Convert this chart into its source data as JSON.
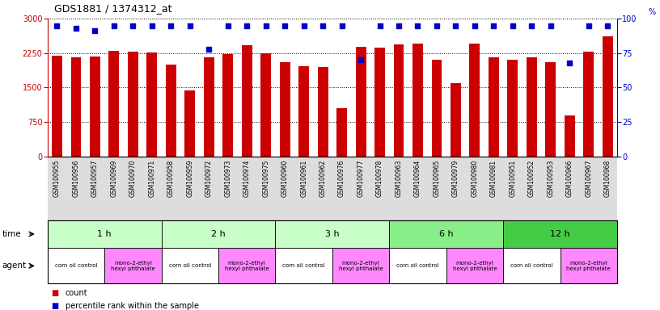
{
  "title": "GDS1881 / 1374312_at",
  "samples": [
    "GSM100955",
    "GSM100956",
    "GSM100957",
    "GSM100969",
    "GSM100970",
    "GSM100971",
    "GSM100958",
    "GSM100959",
    "GSM100972",
    "GSM100973",
    "GSM100974",
    "GSM100975",
    "GSM100960",
    "GSM100961",
    "GSM100962",
    "GSM100976",
    "GSM100977",
    "GSM100978",
    "GSM100963",
    "GSM100964",
    "GSM100965",
    "GSM100979",
    "GSM100980",
    "GSM100981",
    "GSM100951",
    "GSM100952",
    "GSM100953",
    "GSM100966",
    "GSM100967",
    "GSM100968"
  ],
  "counts": [
    2200,
    2150,
    2170,
    2290,
    2280,
    2270,
    2000,
    1430,
    2150,
    2220,
    2430,
    2250,
    2050,
    1970,
    1940,
    1050,
    2390,
    2370,
    2440,
    2450,
    2100,
    1600,
    2450,
    2150,
    2100,
    2150,
    2050,
    900,
    2280,
    2620
  ],
  "percentiles": [
    95,
    93,
    91,
    95,
    95,
    95,
    95,
    95,
    78,
    95,
    95,
    95,
    95,
    95,
    95,
    95,
    70,
    95,
    95,
    95,
    95,
    95,
    95,
    95,
    95,
    95,
    95,
    68,
    95,
    95
  ],
  "bar_color": "#cc0000",
  "dot_color": "#0000cc",
  "ylim_left": [
    0,
    3000
  ],
  "ylim_right": [
    0,
    100
  ],
  "yticks_left": [
    0,
    750,
    1500,
    2250,
    3000
  ],
  "yticks_right": [
    0,
    25,
    50,
    75,
    100
  ],
  "time_groups": [
    {
      "label": "1 h",
      "start": 0,
      "end": 6,
      "color": "#c8ffc8"
    },
    {
      "label": "2 h",
      "start": 6,
      "end": 12,
      "color": "#c8ffc8"
    },
    {
      "label": "3 h",
      "start": 12,
      "end": 18,
      "color": "#c8ffc8"
    },
    {
      "label": "6 h",
      "start": 18,
      "end": 24,
      "color": "#88ee88"
    },
    {
      "label": "12 h",
      "start": 24,
      "end": 30,
      "color": "#44cc44"
    }
  ],
  "agent_groups": [
    {
      "label": "corn oil control",
      "start": 0,
      "end": 3,
      "color": "#ffffff"
    },
    {
      "label": "mono-2-ethyl\nhexyl phthalate",
      "start": 3,
      "end": 6,
      "color": "#ff88ff"
    },
    {
      "label": "corn oil control",
      "start": 6,
      "end": 9,
      "color": "#ffffff"
    },
    {
      "label": "mono-2-ethyl\nhexyl phthalate",
      "start": 9,
      "end": 12,
      "color": "#ff88ff"
    },
    {
      "label": "corn oil control",
      "start": 12,
      "end": 15,
      "color": "#ffffff"
    },
    {
      "label": "mono-2-ethyl\nhexyl phthalate",
      "start": 15,
      "end": 18,
      "color": "#ff88ff"
    },
    {
      "label": "corn oil control",
      "start": 18,
      "end": 21,
      "color": "#ffffff"
    },
    {
      "label": "mono-2-ethyl\nhexyl phthalate",
      "start": 21,
      "end": 24,
      "color": "#ff88ff"
    },
    {
      "label": "corn oil control",
      "start": 24,
      "end": 27,
      "color": "#ffffff"
    },
    {
      "label": "mono-2-ethyl\nhexyl phthalate",
      "start": 27,
      "end": 30,
      "color": "#ff88ff"
    }
  ],
  "xtick_bg": "#dddddd",
  "bg_color": "#ffffff",
  "axis_bg": "#ffffff",
  "left_axis_color": "#cc0000",
  "right_axis_color": "#0000cc"
}
